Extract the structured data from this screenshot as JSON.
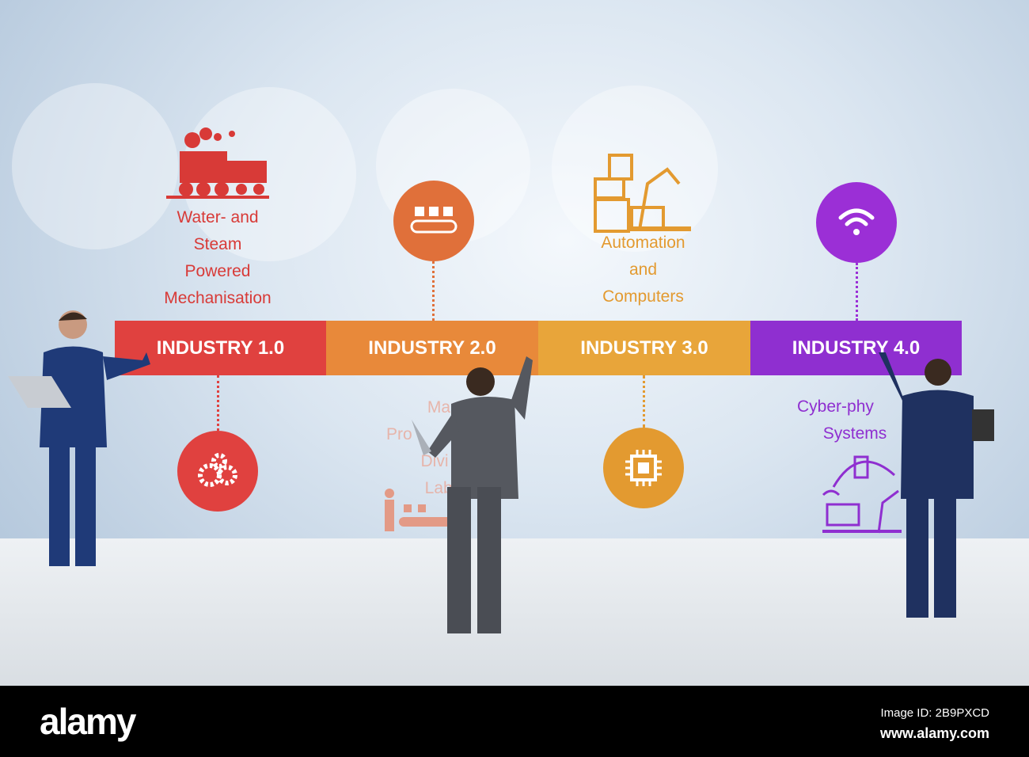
{
  "stages": [
    {
      "label": "INDUSTRY 1.0",
      "description": [
        "Water- and",
        "Steam",
        "Powered",
        "Mechanisation"
      ],
      "color": "#e0413f",
      "icon": "steam-train-icon",
      "circle_icon": "gears-icon"
    },
    {
      "label": "INDUSTRY 2.0",
      "description": [
        "Mass",
        "Pro",
        "Divi",
        "Labo"
      ],
      "color": "#e8893a",
      "icon": "conveyor-belt-icon",
      "circle_icon": "worker-conveyor-icon"
    },
    {
      "label": "INDUSTRY 3.0",
      "description": [
        "Automation",
        "and",
        "Computers"
      ],
      "color": "#e8a53a",
      "icon": "robot-arm-computer-icon",
      "circle_icon": "chip-icon"
    },
    {
      "label": "INDUSTRY 4.0",
      "description": [
        "Cyber-phy",
        "Systems"
      ],
      "color": "#8f2fd0",
      "icon": "wifi-icon",
      "circle_icon": "connected-devices-icon"
    }
  ],
  "footer": {
    "logo": "alamy",
    "image_id": "Image ID: 2B9PXCD",
    "url": "www.alamy.com"
  }
}
